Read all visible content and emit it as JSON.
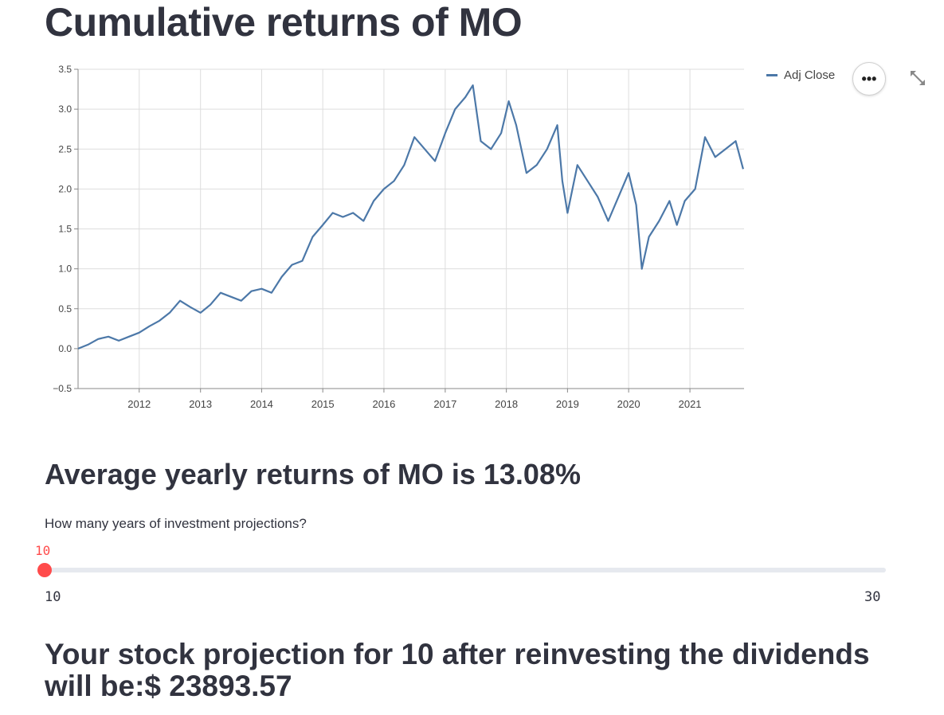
{
  "page": {
    "title": "Cumulative returns of MO",
    "subtitle": "Average yearly returns of MO is 13.08%",
    "projection_text": "Your stock projection for 10 after reinvesting the dividends will be:$ 23893.57"
  },
  "chart_toolbar": {
    "menu_icon": "more-horizontal-icon",
    "menu_label": "•••",
    "expand_icon": "fullscreen-icon"
  },
  "slider": {
    "label": "How many years of investment projections?",
    "value": 10,
    "value_label": "10",
    "min": 10,
    "max": 30,
    "min_label": "10",
    "max_label": "30",
    "accent_color": "#ff4b4b"
  },
  "chart_data": {
    "type": "line",
    "series": [
      {
        "name": "Adj Close",
        "color": "#4c78a8",
        "points": [
          [
            "2011-01-01",
            0.0
          ],
          [
            "2011-03-01",
            0.05
          ],
          [
            "2011-05-01",
            0.12
          ],
          [
            "2011-07-01",
            0.15
          ],
          [
            "2011-09-01",
            0.1
          ],
          [
            "2011-11-01",
            0.15
          ],
          [
            "2012-01-01",
            0.2
          ],
          [
            "2012-03-01",
            0.28
          ],
          [
            "2012-05-01",
            0.35
          ],
          [
            "2012-07-01",
            0.45
          ],
          [
            "2012-09-01",
            0.6
          ],
          [
            "2012-11-01",
            0.52
          ],
          [
            "2013-01-01",
            0.45
          ],
          [
            "2013-03-01",
            0.55
          ],
          [
            "2013-05-01",
            0.7
          ],
          [
            "2013-07-01",
            0.65
          ],
          [
            "2013-09-01",
            0.6
          ],
          [
            "2013-11-01",
            0.72
          ],
          [
            "2014-01-01",
            0.75
          ],
          [
            "2014-03-01",
            0.7
          ],
          [
            "2014-05-01",
            0.9
          ],
          [
            "2014-07-01",
            1.05
          ],
          [
            "2014-09-01",
            1.1
          ],
          [
            "2014-11-01",
            1.4
          ],
          [
            "2015-01-01",
            1.55
          ],
          [
            "2015-03-01",
            1.7
          ],
          [
            "2015-05-01",
            1.65
          ],
          [
            "2015-07-01",
            1.7
          ],
          [
            "2015-09-01",
            1.6
          ],
          [
            "2015-11-01",
            1.85
          ],
          [
            "2016-01-01",
            2.0
          ],
          [
            "2016-03-01",
            2.1
          ],
          [
            "2016-05-01",
            2.3
          ],
          [
            "2016-07-01",
            2.65
          ],
          [
            "2016-09-01",
            2.5
          ],
          [
            "2016-11-01",
            2.35
          ],
          [
            "2017-01-01",
            2.7
          ],
          [
            "2017-03-01",
            3.0
          ],
          [
            "2017-05-01",
            3.15
          ],
          [
            "2017-06-15",
            3.3
          ],
          [
            "2017-08-01",
            2.6
          ],
          [
            "2017-10-01",
            2.5
          ],
          [
            "2017-12-01",
            2.7
          ],
          [
            "2018-01-15",
            3.1
          ],
          [
            "2018-03-01",
            2.8
          ],
          [
            "2018-05-01",
            2.2
          ],
          [
            "2018-07-01",
            2.3
          ],
          [
            "2018-09-01",
            2.5
          ],
          [
            "2018-11-01",
            2.8
          ],
          [
            "2018-12-01",
            2.1
          ],
          [
            "2019-01-01",
            1.7
          ],
          [
            "2019-03-01",
            2.3
          ],
          [
            "2019-05-01",
            2.1
          ],
          [
            "2019-07-01",
            1.9
          ],
          [
            "2019-09-01",
            1.6
          ],
          [
            "2019-11-01",
            1.9
          ],
          [
            "2020-01-01",
            2.2
          ],
          [
            "2020-02-15",
            1.8
          ],
          [
            "2020-03-20",
            1.0
          ],
          [
            "2020-05-01",
            1.4
          ],
          [
            "2020-07-01",
            1.6
          ],
          [
            "2020-09-01",
            1.85
          ],
          [
            "2020-10-15",
            1.55
          ],
          [
            "2020-12-01",
            1.85
          ],
          [
            "2021-02-01",
            2.0
          ],
          [
            "2021-04-01",
            2.65
          ],
          [
            "2021-06-01",
            2.4
          ],
          [
            "2021-08-01",
            2.5
          ],
          [
            "2021-10-01",
            2.6
          ],
          [
            "2021-11-15",
            2.25
          ]
        ]
      }
    ],
    "x_ticks": [
      "2012",
      "2013",
      "2014",
      "2015",
      "2016",
      "2017",
      "2018",
      "2019",
      "2020",
      "2021"
    ],
    "y_ticks": [
      "−0.5",
      "0.0",
      "0.5",
      "1.0",
      "1.5",
      "2.0",
      "2.5",
      "3.0",
      "3.5"
    ],
    "xlim": [
      "2011-01-01",
      "2021-11-20"
    ],
    "ylim": [
      -0.5,
      3.5
    ],
    "grid": true,
    "legend": "top-right",
    "title": "",
    "xlabel": "",
    "ylabel": ""
  }
}
